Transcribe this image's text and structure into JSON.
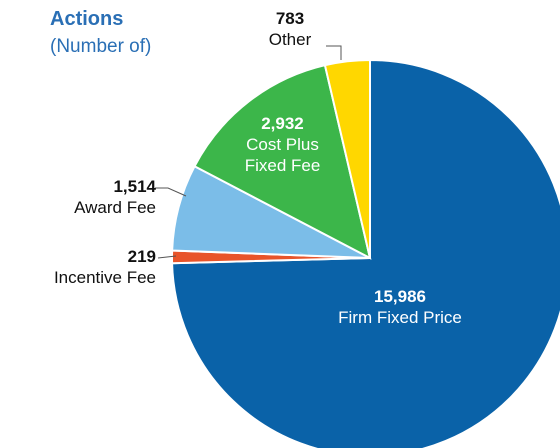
{
  "chart_data": {
    "type": "pie",
    "title": "Actions",
    "subtitle": "(Number of)",
    "categories": [
      "Firm Fixed Price",
      "Incentive Fee",
      "Award Fee",
      "Cost Plus Fixed Fee",
      "Other"
    ],
    "values": [
      15986,
      219,
      1514,
      2932,
      783
    ],
    "value_labels": [
      "15,986",
      "219",
      "1,514",
      "2,932",
      "783"
    ],
    "colors": [
      "#0a62a8",
      "#e8542a",
      "#7bbde8",
      "#3cb64a",
      "#ffd700"
    ]
  }
}
